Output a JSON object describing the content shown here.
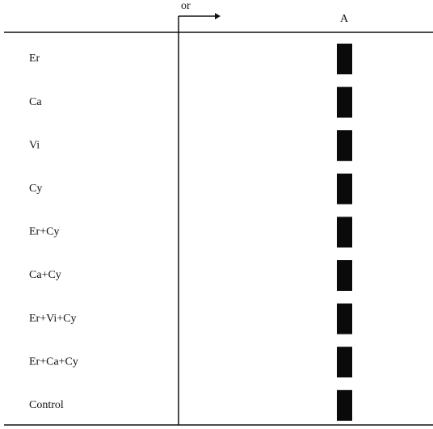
{
  "header": {
    "origin": "or",
    "lane": "A"
  },
  "rows": [
    {
      "label": "Er"
    },
    {
      "label": "Ca"
    },
    {
      "label": "Vi"
    },
    {
      "label": "Cy"
    },
    {
      "label": "Er+Cy"
    },
    {
      "label": "Ca+Cy"
    },
    {
      "label": "Er+Vi+Cy"
    },
    {
      "label": "Er+Ca+Cy"
    },
    {
      "label": "Control"
    }
  ]
}
